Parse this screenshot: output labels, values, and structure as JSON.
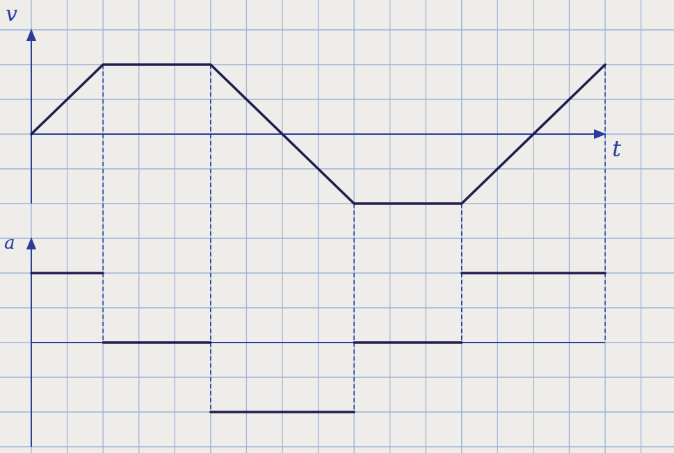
{
  "chart_data": [
    {
      "type": "line",
      "ylabel": "v",
      "xlabel": "t",
      "x": [
        0,
        2,
        5,
        9,
        12,
        16
      ],
      "values": [
        0,
        2,
        2,
        -2,
        -2,
        2
      ],
      "xlim": [
        0,
        16
      ],
      "ylim": [
        -2,
        3
      ],
      "tick_labels": false,
      "color": "#1f1d4e"
    },
    {
      "type": "step",
      "ylabel": "a",
      "bins": [
        0,
        2,
        5,
        9,
        12,
        16
      ],
      "values": [
        2,
        0,
        -2,
        0,
        2
      ],
      "xlim": [
        0,
        16
      ],
      "ylim": [
        -3,
        3
      ],
      "tick_labels": false,
      "color": "#1f1d4e"
    }
  ]
}
